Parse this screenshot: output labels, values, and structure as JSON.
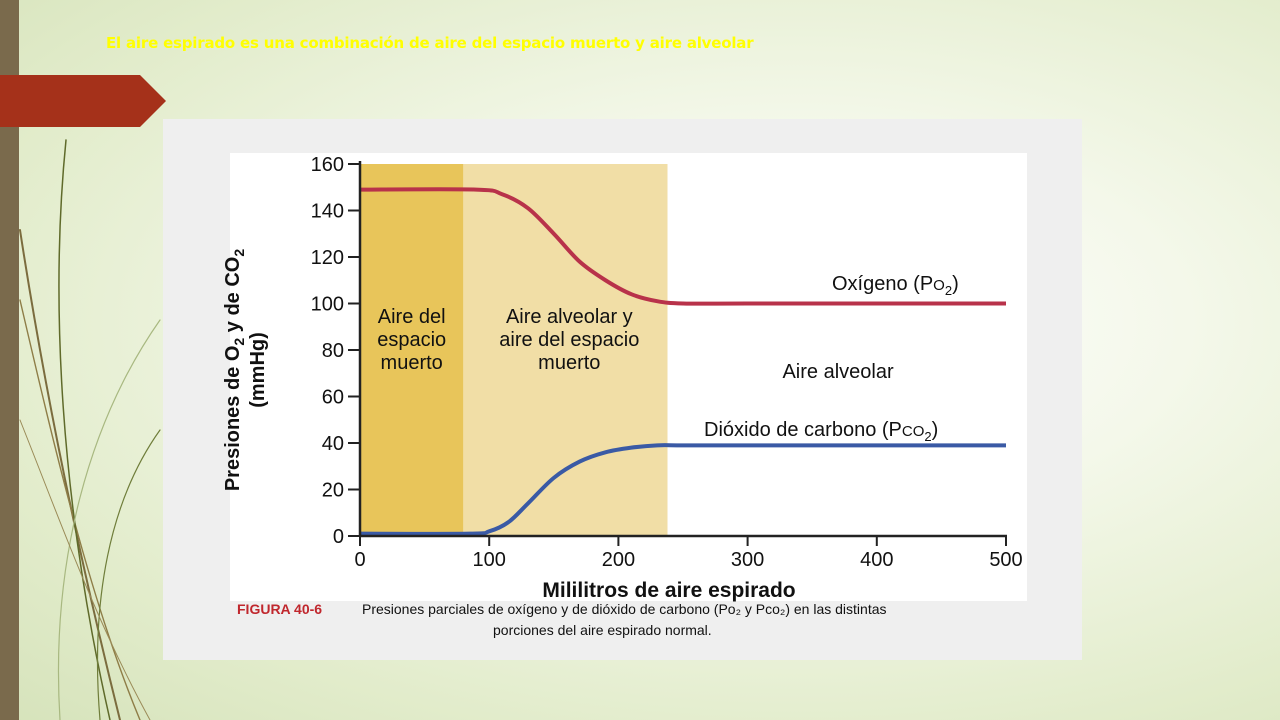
{
  "slide": {
    "title": "El aire espirado es una combinación de aire del espacio muerto y aire alveolar"
  },
  "colors": {
    "accent_arrow": "#a5311a",
    "left_bar": "#7a6a4c",
    "title_text": "#ffff00",
    "oxygen_line": "#b8324a",
    "co2_line": "#3a5aa5",
    "dead_space_fill": "#e8c55a",
    "mixed_fill": "#f1dea6",
    "caption_label": "#c0272d"
  },
  "chart_data": {
    "type": "line",
    "xlabel": "Mililitros de aire espirado",
    "ylabel_line1": "Presiones de O",
    "ylabel_sub1": "2",
    "ylabel_mid": " y de CO",
    "ylabel_sub2": "2",
    "ylabel_line2": "(mmHg)",
    "xlim": [
      0,
      500
    ],
    "ylim": [
      0,
      160
    ],
    "x_ticks": [
      0,
      100,
      200,
      300,
      400,
      500
    ],
    "y_ticks": [
      0,
      20,
      40,
      60,
      80,
      100,
      120,
      140,
      160
    ],
    "regions": [
      {
        "name": "dead_space",
        "x": [
          0,
          80
        ],
        "label_lines": [
          "Aire del",
          "espacio",
          "muerto"
        ]
      },
      {
        "name": "mixed",
        "x": [
          80,
          238
        ],
        "label_lines": [
          "Aire alveolar y",
          "aire del espacio",
          "muerto"
        ]
      },
      {
        "name": "alveolar",
        "x": [
          238,
          500
        ],
        "label_lines": [
          "Aire alveolar"
        ]
      }
    ],
    "series": [
      {
        "name": "Oxígeno (Po2)",
        "label_text": "Oxígeno (P",
        "label_sub": "O",
        "label_subsub": "2",
        "label_end": ")",
        "x": [
          0,
          90,
          110,
          130,
          150,
          170,
          190,
          210,
          230,
          250,
          300,
          400,
          500
        ],
        "values": [
          149,
          149,
          147,
          141,
          130,
          118,
          110,
          104,
          101,
          100,
          100,
          100,
          100
        ]
      },
      {
        "name": "Dióxido de carbono (Pco2)",
        "label_text": "Dióxido de carbono (P",
        "label_sub": "CO",
        "label_subsub": "2",
        "label_end": ")",
        "x": [
          0,
          85,
          100,
          115,
          130,
          150,
          170,
          190,
          210,
          230,
          250,
          300,
          400,
          500
        ],
        "values": [
          1,
          1,
          2,
          6,
          14,
          25,
          32,
          36,
          38,
          39,
          39,
          39,
          39,
          39
        ]
      }
    ]
  },
  "caption": {
    "label": "FIGURA 40-6",
    "text_line1": "Presiones parciales de oxígeno y de dióxido de carbono (Po₂ y Pco₂) en las distintas",
    "text_line2": "porciones del aire espirado normal."
  }
}
